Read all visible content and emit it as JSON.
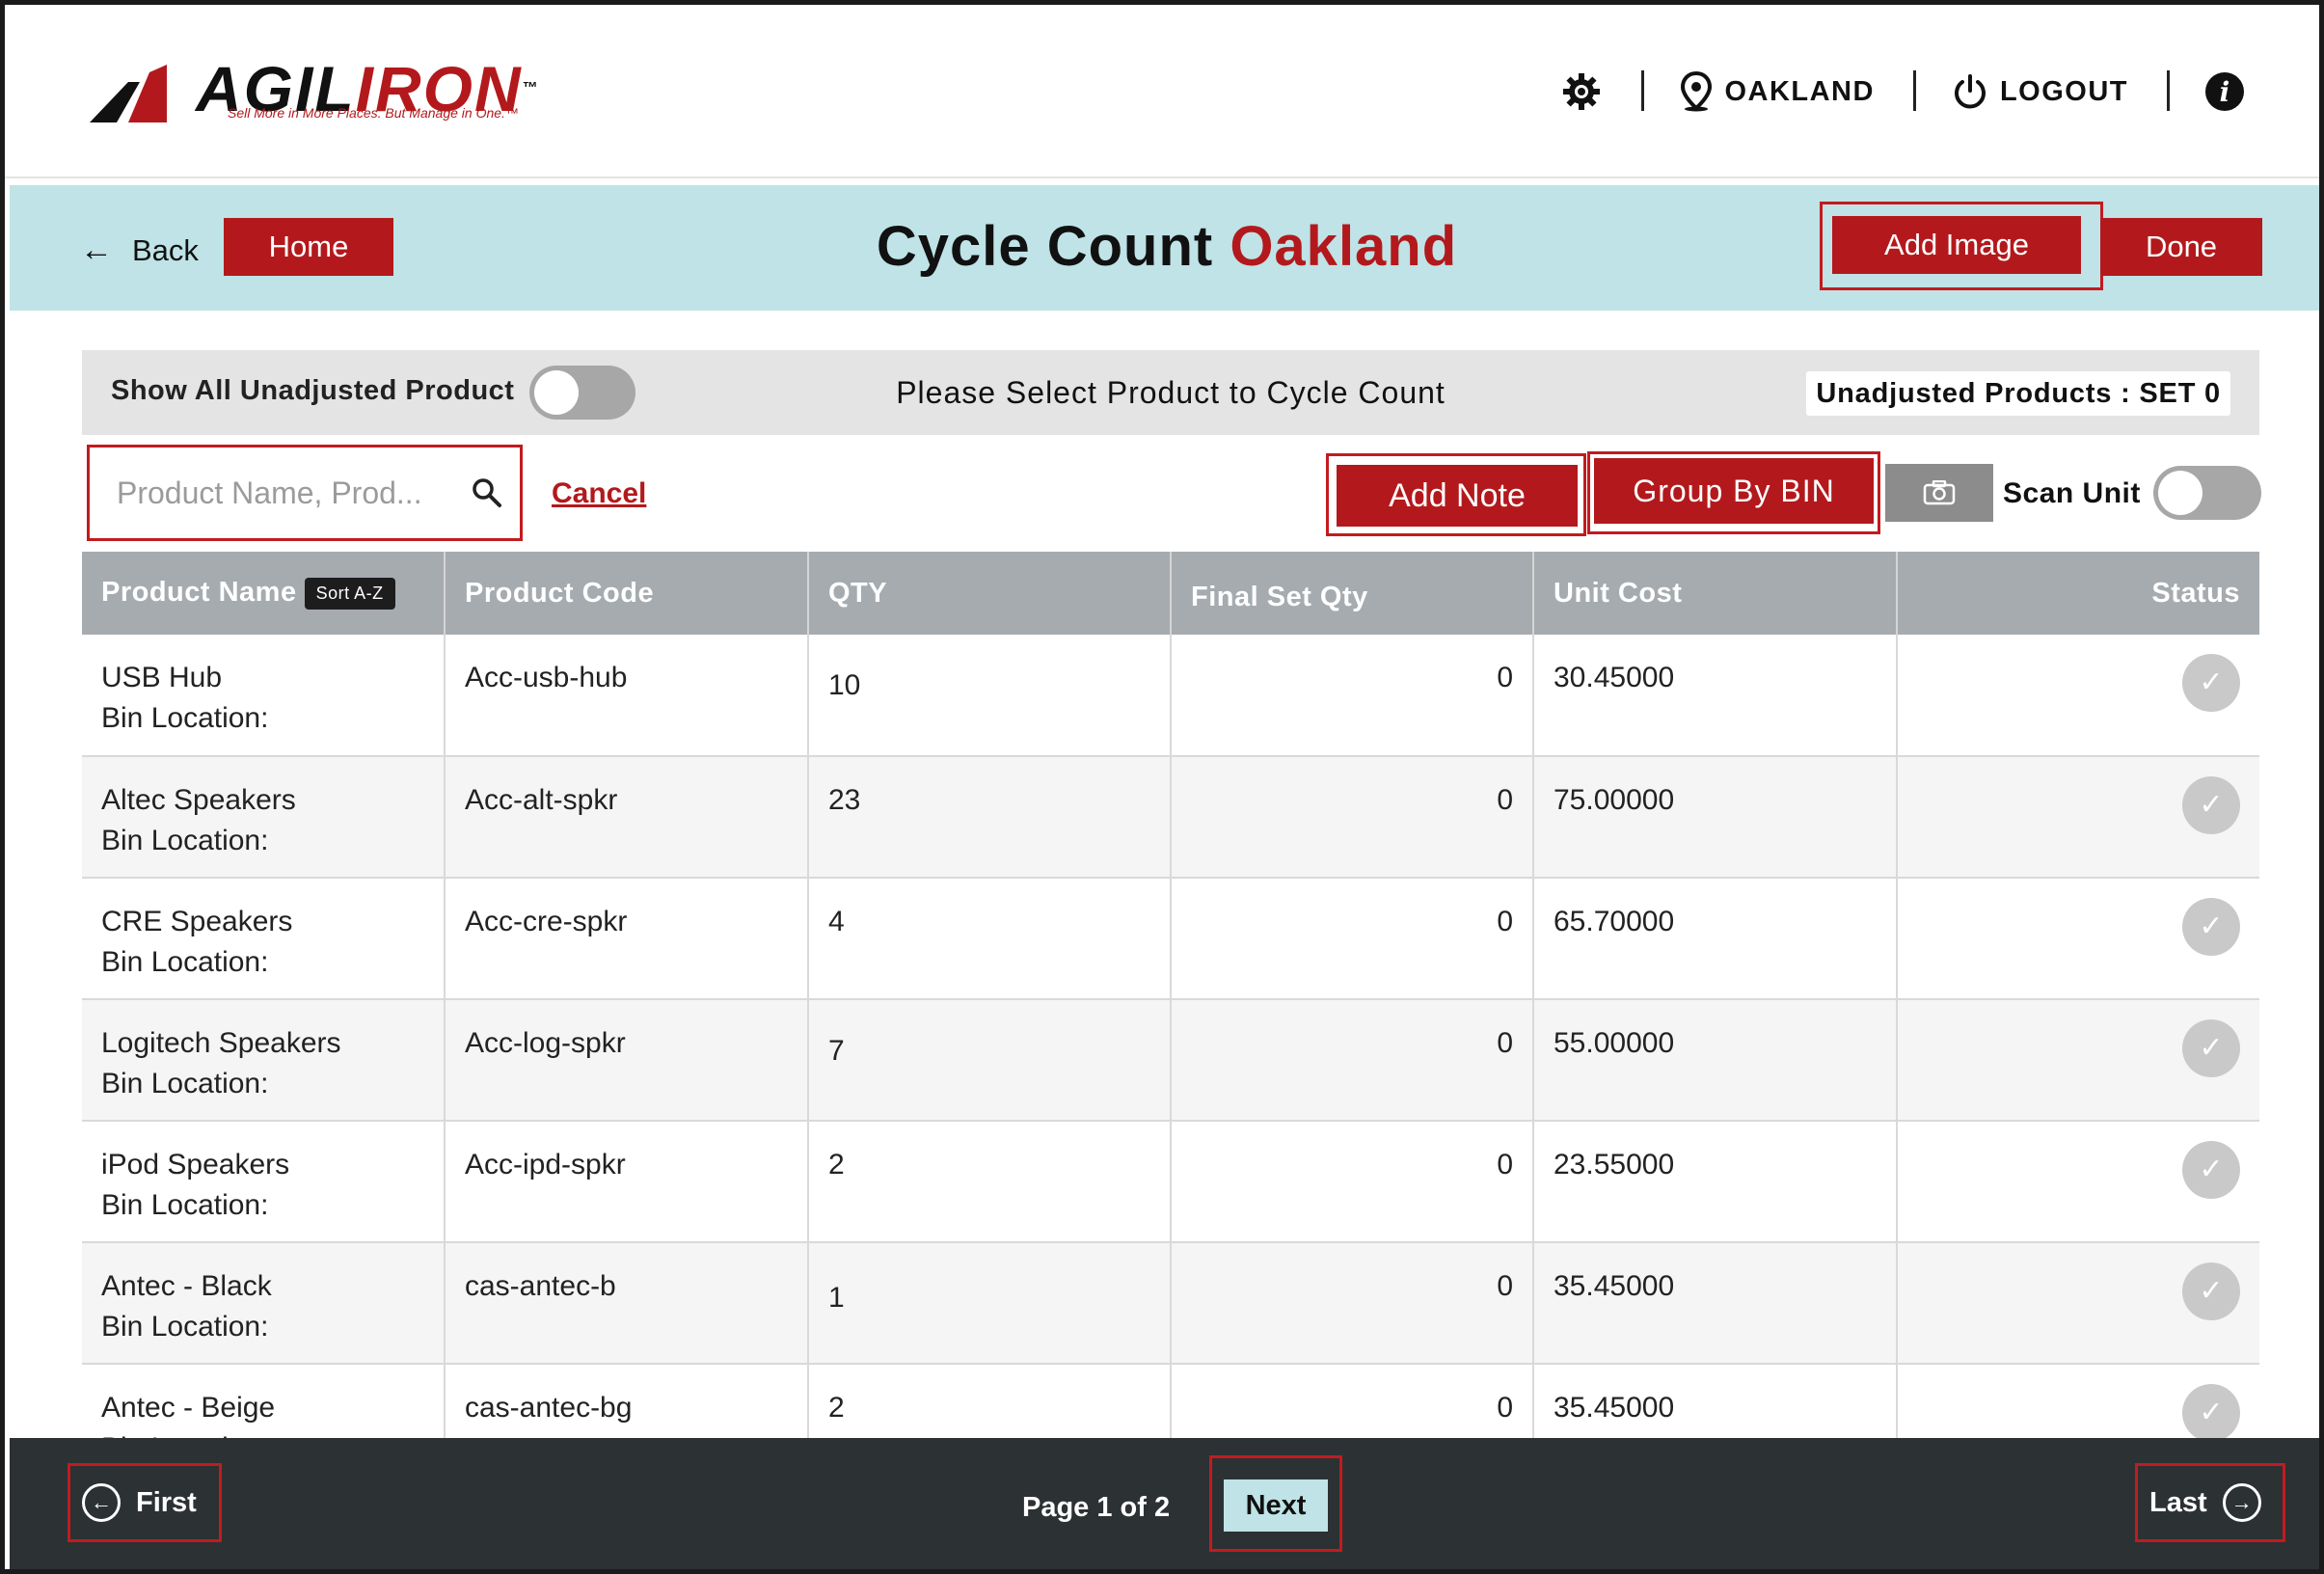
{
  "header": {
    "logo_text_black": "AGIL",
    "logo_text_red": "IRON",
    "logo_tm": "™",
    "logo_tagline": "Sell More in More Places. But Manage in One.™",
    "location": "OAKLAND",
    "logout": "LOGOUT"
  },
  "titlebar": {
    "back": "Back",
    "home": "Home",
    "title": "Cycle Count",
    "title_location": "Oakland",
    "add_image": "Add Image",
    "done": "Done"
  },
  "filterbar": {
    "show_all_label": "Show All Unadjusted Product",
    "select_message": "Please Select Product to Cycle Count",
    "unadjusted_badge": "Unadjusted Products : SET 0"
  },
  "actions": {
    "search_placeholder": "Product Name, Prod...",
    "cancel": "Cancel",
    "add_note": "Add Note",
    "group_by_bin": "Group By BIN",
    "scan_unit": "Scan Unit"
  },
  "table": {
    "columns": {
      "product_name": "Product Name",
      "sort_badge": "Sort A-Z",
      "product_code": "Product Code",
      "qty": "QTY",
      "final_set_qty": "Final Set Qty",
      "unit_cost": "Unit Cost",
      "status": "Status"
    },
    "bin_label": "Bin Location:",
    "rows": [
      {
        "name": "USB Hub",
        "code": "Acc-usb-hub",
        "qty": "10",
        "final": "0",
        "cost": "30.45000"
      },
      {
        "name": "Altec Speakers",
        "code": "Acc-alt-spkr",
        "qty": "23",
        "final": "0",
        "cost": "75.00000"
      },
      {
        "name": "CRE Speakers",
        "code": "Acc-cre-spkr",
        "qty": "4",
        "final": "0",
        "cost": "65.70000"
      },
      {
        "name": "Logitech Speakers",
        "code": "Acc-log-spkr",
        "qty": "7",
        "final": "0",
        "cost": "55.00000"
      },
      {
        "name": "iPod Speakers",
        "code": "Acc-ipd-spkr",
        "qty": "2",
        "final": "0",
        "cost": "23.55000"
      },
      {
        "name": "Antec - Black",
        "code": "cas-antec-b",
        "qty": "1",
        "final": "0",
        "cost": "35.45000"
      },
      {
        "name": "Antec - Beige",
        "code": "cas-antec-bg",
        "qty": "2",
        "final": "0",
        "cost": "35.45000"
      }
    ]
  },
  "pager": {
    "first": "First",
    "page_indicator": "Page 1 of 2",
    "next": "Next",
    "last": "Last"
  },
  "colors": {
    "brand_red": "#b3191c",
    "title_band": "#bfe3e6",
    "table_header": "#a5abaf",
    "footer": "#2c3133"
  }
}
